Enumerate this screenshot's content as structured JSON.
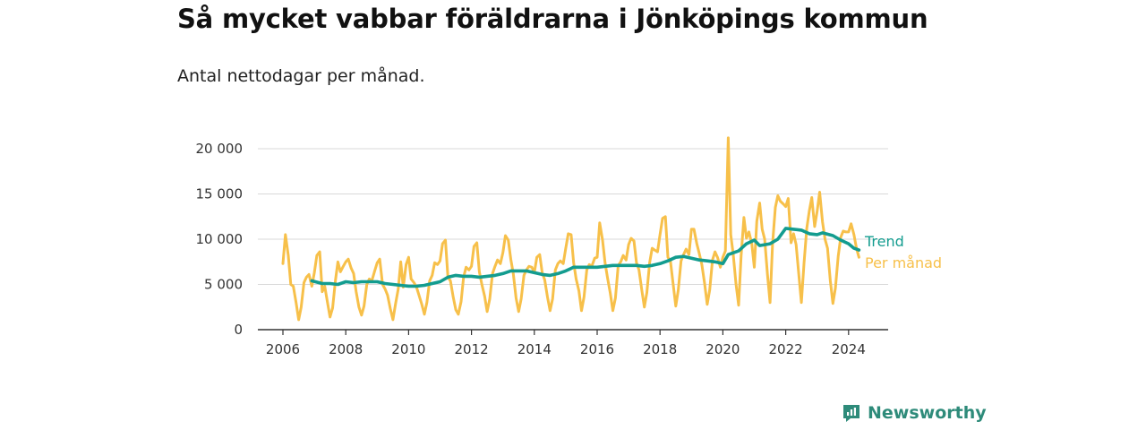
{
  "header": {
    "title": "Så mycket vabbar föräldrarna i Jönköpings kommun",
    "subtitle": "Antal nettodagar per månad."
  },
  "brand": {
    "name": "Newsworthy",
    "icon": "newsworthy-logo-icon",
    "color": "#2e8b7a"
  },
  "colors": {
    "per_manad": "#f7c04a",
    "trend": "#139c8f",
    "grid": "#d9d9d9",
    "axis": "#333333"
  },
  "chart_data": {
    "type": "line",
    "title": "Så mycket vabbar föräldrarna i Jönköpings kommun",
    "subtitle": "Antal nettodagar per månad.",
    "xlabel": "",
    "ylabel": "",
    "xlim": [
      2006,
      2024.4
    ],
    "ylim": [
      0,
      20000
    ],
    "x_ticks": [
      2006,
      2008,
      2010,
      2012,
      2014,
      2016,
      2018,
      2020,
      2022,
      2024
    ],
    "y_ticks": [
      0,
      5000,
      10000,
      15000,
      20000
    ],
    "y_tick_labels": [
      "0",
      "5 000",
      "10 000",
      "15 000",
      "20 000"
    ],
    "grid": "horizontal",
    "legend": "inline labels at line ends, right",
    "series": [
      {
        "name": "Per månad",
        "color": "#f7c04a",
        "points": [
          [
            2006.0,
            7300
          ],
          [
            2006.08,
            10500
          ],
          [
            2006.17,
            8200
          ],
          [
            2006.25,
            5000
          ],
          [
            2006.33,
            4800
          ],
          [
            2006.42,
            3000
          ],
          [
            2006.5,
            1100
          ],
          [
            2006.58,
            2500
          ],
          [
            2006.67,
            5200
          ],
          [
            2006.75,
            5800
          ],
          [
            2006.83,
            6100
          ],
          [
            2006.92,
            4800
          ],
          [
            2007.0,
            6300
          ],
          [
            2007.08,
            8200
          ],
          [
            2007.17,
            8600
          ],
          [
            2007.25,
            4200
          ],
          [
            2007.33,
            4800
          ],
          [
            2007.42,
            3000
          ],
          [
            2007.5,
            1400
          ],
          [
            2007.58,
            2400
          ],
          [
            2007.67,
            5400
          ],
          [
            2007.75,
            7500
          ],
          [
            2007.83,
            6400
          ],
          [
            2007.92,
            7000
          ],
          [
            2008.0,
            7500
          ],
          [
            2008.08,
            7800
          ],
          [
            2008.17,
            6800
          ],
          [
            2008.25,
            6200
          ],
          [
            2008.33,
            4200
          ],
          [
            2008.42,
            2500
          ],
          [
            2008.5,
            1600
          ],
          [
            2008.58,
            2600
          ],
          [
            2008.67,
            5000
          ],
          [
            2008.75,
            5600
          ],
          [
            2008.83,
            5400
          ],
          [
            2008.92,
            6500
          ],
          [
            2009.0,
            7400
          ],
          [
            2009.08,
            7800
          ],
          [
            2009.17,
            5000
          ],
          [
            2009.25,
            4500
          ],
          [
            2009.33,
            3800
          ],
          [
            2009.42,
            2300
          ],
          [
            2009.5,
            1100
          ],
          [
            2009.58,
            2800
          ],
          [
            2009.67,
            4500
          ],
          [
            2009.75,
            7500
          ],
          [
            2009.83,
            4700
          ],
          [
            2009.92,
            7200
          ],
          [
            2010.0,
            8000
          ],
          [
            2010.08,
            5600
          ],
          [
            2010.17,
            5200
          ],
          [
            2010.25,
            4700
          ],
          [
            2010.33,
            3800
          ],
          [
            2010.42,
            2800
          ],
          [
            2010.5,
            1700
          ],
          [
            2010.58,
            3000
          ],
          [
            2010.67,
            5400
          ],
          [
            2010.75,
            6000
          ],
          [
            2010.83,
            7400
          ],
          [
            2010.92,
            7200
          ],
          [
            2011.0,
            7600
          ],
          [
            2011.08,
            9500
          ],
          [
            2011.17,
            9900
          ],
          [
            2011.25,
            5800
          ],
          [
            2011.33,
            5400
          ],
          [
            2011.42,
            3600
          ],
          [
            2011.5,
            2200
          ],
          [
            2011.58,
            1700
          ],
          [
            2011.67,
            3100
          ],
          [
            2011.75,
            5800
          ],
          [
            2011.83,
            6900
          ],
          [
            2011.92,
            6600
          ],
          [
            2012.0,
            7000
          ],
          [
            2012.08,
            9200
          ],
          [
            2012.17,
            9600
          ],
          [
            2012.25,
            6400
          ],
          [
            2012.33,
            5000
          ],
          [
            2012.42,
            3700
          ],
          [
            2012.5,
            2000
          ],
          [
            2012.58,
            3400
          ],
          [
            2012.67,
            6200
          ],
          [
            2012.75,
            7000
          ],
          [
            2012.83,
            7700
          ],
          [
            2012.92,
            7300
          ],
          [
            2013.0,
            8500
          ],
          [
            2013.08,
            10400
          ],
          [
            2013.17,
            9900
          ],
          [
            2013.25,
            7800
          ],
          [
            2013.33,
            6200
          ],
          [
            2013.42,
            3500
          ],
          [
            2013.5,
            2000
          ],
          [
            2013.58,
            3400
          ],
          [
            2013.67,
            6000
          ],
          [
            2013.75,
            6600
          ],
          [
            2013.83,
            7000
          ],
          [
            2013.92,
            6900
          ],
          [
            2014.0,
            6300
          ],
          [
            2014.08,
            8000
          ],
          [
            2014.17,
            8300
          ],
          [
            2014.25,
            6300
          ],
          [
            2014.33,
            5500
          ],
          [
            2014.42,
            3600
          ],
          [
            2014.5,
            2100
          ],
          [
            2014.58,
            3400
          ],
          [
            2014.67,
            6600
          ],
          [
            2014.75,
            7300
          ],
          [
            2014.83,
            7600
          ],
          [
            2014.92,
            7300
          ],
          [
            2015.0,
            9000
          ],
          [
            2015.08,
            10600
          ],
          [
            2015.17,
            10500
          ],
          [
            2015.25,
            7400
          ],
          [
            2015.33,
            5600
          ],
          [
            2015.42,
            4300
          ],
          [
            2015.5,
            2100
          ],
          [
            2015.58,
            3600
          ],
          [
            2015.67,
            6600
          ],
          [
            2015.75,
            7200
          ],
          [
            2015.83,
            7000
          ],
          [
            2015.92,
            7900
          ],
          [
            2016.0,
            8000
          ],
          [
            2016.08,
            11800
          ],
          [
            2016.17,
            9900
          ],
          [
            2016.25,
            7400
          ],
          [
            2016.33,
            5700
          ],
          [
            2016.42,
            4000
          ],
          [
            2016.5,
            2100
          ],
          [
            2016.58,
            3500
          ],
          [
            2016.67,
            7100
          ],
          [
            2016.75,
            7500
          ],
          [
            2016.83,
            8200
          ],
          [
            2016.92,
            7700
          ],
          [
            2017.0,
            9400
          ],
          [
            2017.08,
            10100
          ],
          [
            2017.17,
            9800
          ],
          [
            2017.25,
            7400
          ],
          [
            2017.33,
            6600
          ],
          [
            2017.42,
            4400
          ],
          [
            2017.5,
            2500
          ],
          [
            2017.58,
            4100
          ],
          [
            2017.67,
            7400
          ],
          [
            2017.75,
            9000
          ],
          [
            2017.83,
            8800
          ],
          [
            2017.92,
            8600
          ],
          [
            2018.0,
            10500
          ],
          [
            2018.08,
            12300
          ],
          [
            2018.17,
            12500
          ],
          [
            2018.25,
            8000
          ],
          [
            2018.33,
            7600
          ],
          [
            2018.42,
            5000
          ],
          [
            2018.5,
            2600
          ],
          [
            2018.58,
            4400
          ],
          [
            2018.67,
            7600
          ],
          [
            2018.75,
            8300
          ],
          [
            2018.83,
            8900
          ],
          [
            2018.92,
            8300
          ],
          [
            2019.0,
            11100
          ],
          [
            2019.08,
            11100
          ],
          [
            2019.17,
            9500
          ],
          [
            2019.25,
            8400
          ],
          [
            2019.33,
            7200
          ],
          [
            2019.42,
            5100
          ],
          [
            2019.5,
            2800
          ],
          [
            2019.58,
            4400
          ],
          [
            2019.67,
            7700
          ],
          [
            2019.75,
            8600
          ],
          [
            2019.83,
            8000
          ],
          [
            2019.92,
            6900
          ],
          [
            2020.0,
            8000
          ],
          [
            2020.08,
            8700
          ],
          [
            2020.17,
            21200
          ],
          [
            2020.25,
            10500
          ],
          [
            2020.33,
            8300
          ],
          [
            2020.42,
            5000
          ],
          [
            2020.5,
            2700
          ],
          [
            2020.58,
            8200
          ],
          [
            2020.67,
            12400
          ],
          [
            2020.75,
            10100
          ],
          [
            2020.83,
            10800
          ],
          [
            2020.92,
            9500
          ],
          [
            2021.0,
            6900
          ],
          [
            2021.08,
            12000
          ],
          [
            2021.17,
            14000
          ],
          [
            2021.25,
            11100
          ],
          [
            2021.33,
            10000
          ],
          [
            2021.42,
            6100
          ],
          [
            2021.5,
            3000
          ],
          [
            2021.58,
            9500
          ],
          [
            2021.67,
            13500
          ],
          [
            2021.75,
            14800
          ],
          [
            2021.83,
            14200
          ],
          [
            2021.92,
            13900
          ],
          [
            2022.0,
            13600
          ],
          [
            2022.08,
            14500
          ],
          [
            2022.17,
            9600
          ],
          [
            2022.25,
            10600
          ],
          [
            2022.33,
            9400
          ],
          [
            2022.42,
            6000
          ],
          [
            2022.5,
            3000
          ],
          [
            2022.58,
            7300
          ],
          [
            2022.67,
            11200
          ],
          [
            2022.75,
            13100
          ],
          [
            2022.83,
            14600
          ],
          [
            2022.92,
            11400
          ],
          [
            2023.0,
            13100
          ],
          [
            2023.08,
            15200
          ],
          [
            2023.17,
            11900
          ],
          [
            2023.25,
            10000
          ],
          [
            2023.33,
            9000
          ],
          [
            2023.42,
            5400
          ],
          [
            2023.5,
            2900
          ],
          [
            2023.58,
            4600
          ],
          [
            2023.67,
            8100
          ],
          [
            2023.75,
            10200
          ],
          [
            2023.83,
            10900
          ],
          [
            2023.92,
            10800
          ],
          [
            2024.0,
            10800
          ],
          [
            2024.08,
            11700
          ],
          [
            2024.17,
            10500
          ],
          [
            2024.25,
            9000
          ],
          [
            2024.33,
            8000
          ]
        ]
      },
      {
        "name": "Trend",
        "color": "#139c8f",
        "points": [
          [
            2006.92,
            5400
          ],
          [
            2007.25,
            5100
          ],
          [
            2007.5,
            5100
          ],
          [
            2007.75,
            5000
          ],
          [
            2008.0,
            5300
          ],
          [
            2008.25,
            5200
          ],
          [
            2008.5,
            5300
          ],
          [
            2008.75,
            5300
          ],
          [
            2009.0,
            5300
          ],
          [
            2009.25,
            5100
          ],
          [
            2009.5,
            5000
          ],
          [
            2009.75,
            4900
          ],
          [
            2010.0,
            4800
          ],
          [
            2010.25,
            4800
          ],
          [
            2010.5,
            4900
          ],
          [
            2010.75,
            5100
          ],
          [
            2011.0,
            5300
          ],
          [
            2011.25,
            5800
          ],
          [
            2011.5,
            6000
          ],
          [
            2011.75,
            5900
          ],
          [
            2012.0,
            5900
          ],
          [
            2012.25,
            5800
          ],
          [
            2012.5,
            5900
          ],
          [
            2012.75,
            6000
          ],
          [
            2013.0,
            6200
          ],
          [
            2013.25,
            6500
          ],
          [
            2013.5,
            6500
          ],
          [
            2013.75,
            6500
          ],
          [
            2014.0,
            6300
          ],
          [
            2014.25,
            6100
          ],
          [
            2014.5,
            6000
          ],
          [
            2014.75,
            6200
          ],
          [
            2015.0,
            6500
          ],
          [
            2015.25,
            6900
          ],
          [
            2015.5,
            6900
          ],
          [
            2015.75,
            6900
          ],
          [
            2016.0,
            6900
          ],
          [
            2016.25,
            7000
          ],
          [
            2016.5,
            7100
          ],
          [
            2016.75,
            7100
          ],
          [
            2017.0,
            7100
          ],
          [
            2017.25,
            7100
          ],
          [
            2017.5,
            7000
          ],
          [
            2017.75,
            7100
          ],
          [
            2018.0,
            7300
          ],
          [
            2018.25,
            7600
          ],
          [
            2018.5,
            8000
          ],
          [
            2018.75,
            8100
          ],
          [
            2019.0,
            7900
          ],
          [
            2019.25,
            7700
          ],
          [
            2019.5,
            7600
          ],
          [
            2019.75,
            7500
          ],
          [
            2020.0,
            7300
          ],
          [
            2020.17,
            8300
          ],
          [
            2020.5,
            8700
          ],
          [
            2020.75,
            9500
          ],
          [
            2021.0,
            9900
          ],
          [
            2021.17,
            9300
          ],
          [
            2021.5,
            9500
          ],
          [
            2021.75,
            10000
          ],
          [
            2022.0,
            11200
          ],
          [
            2022.25,
            11100
          ],
          [
            2022.5,
            11000
          ],
          [
            2022.75,
            10600
          ],
          [
            2023.0,
            10500
          ],
          [
            2023.17,
            10700
          ],
          [
            2023.5,
            10400
          ],
          [
            2023.75,
            9900
          ],
          [
            2024.0,
            9500
          ],
          [
            2024.17,
            9000
          ],
          [
            2024.33,
            8800
          ]
        ]
      }
    ]
  }
}
